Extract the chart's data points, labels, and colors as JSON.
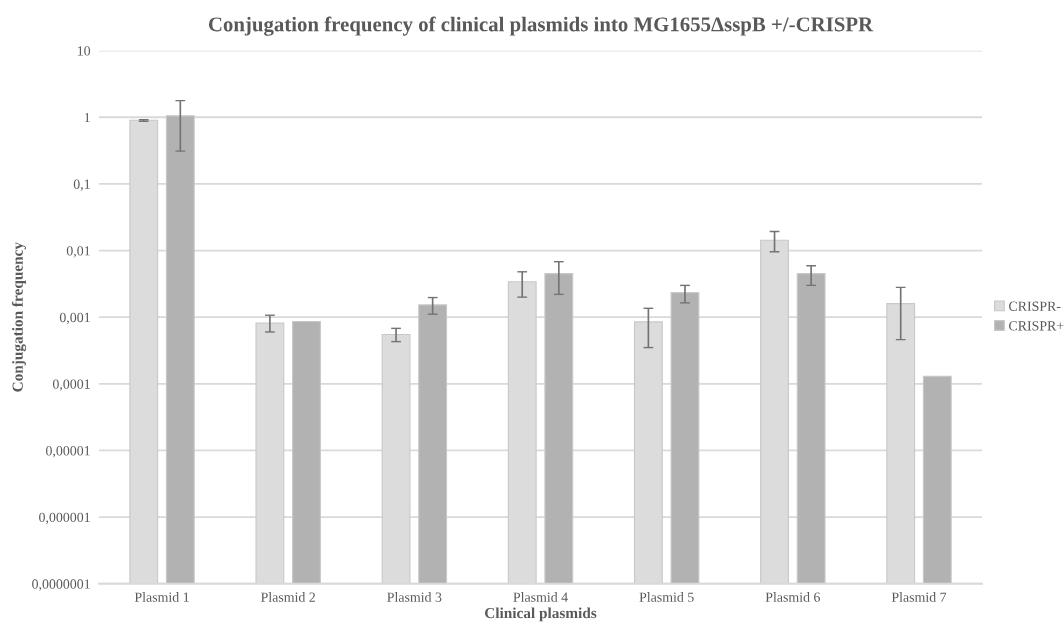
{
  "chart_data": {
    "type": "bar",
    "title": "Conjugation frequency of clinical plasmids into MG1655ΔsspB +/-CRISPR",
    "xlabel": "Clinical plasmids",
    "ylabel": "Conjugation frequency",
    "categories": [
      "Plasmid 1",
      "Plasmid 2",
      "Plasmid 3",
      "Plasmid 4",
      "Plasmid 5",
      "Plasmid 6",
      "Plasmid 7"
    ],
    "series": [
      {
        "name": "CRISPR-",
        "color": "#dcdcdc",
        "values": [
          0.9,
          0.00082,
          0.00055,
          0.0034,
          0.00085,
          0.0143,
          0.0016
        ],
        "errors": [
          [
            0.87,
            0.92
          ],
          [
            0.0006,
            0.00107
          ],
          [
            0.00043,
            0.00068
          ],
          [
            0.002,
            0.0048
          ],
          [
            0.00035,
            0.00136
          ],
          [
            0.0096,
            0.0193
          ],
          [
            0.00046,
            0.0028
          ]
        ]
      },
      {
        "name": "CRISPR+",
        "color": "#b2b2b2",
        "values": [
          1.05,
          0.00086,
          0.00153,
          0.0045,
          0.00234,
          0.0045,
          0.00013
        ],
        "errors": [
          [
            0.31,
            1.78
          ],
          null,
          [
            0.00111,
            0.00197
          ],
          [
            0.0022,
            0.0068
          ],
          [
            0.00164,
            0.003
          ],
          [
            0.003,
            0.0059
          ],
          null
        ]
      }
    ],
    "log": "y",
    "ylim": [
      1e-07,
      10
    ],
    "yticks": [
      {
        "value": 1e-07,
        "label": "0,0000001"
      },
      {
        "value": 1e-06,
        "label": "0,000001"
      },
      {
        "value": 1e-05,
        "label": "0,00001"
      },
      {
        "value": 0.0001,
        "label": "0,0001"
      },
      {
        "value": 0.001,
        "label": "0,001"
      },
      {
        "value": 0.01,
        "label": "0,01"
      },
      {
        "value": 0.1,
        "label": "0,1"
      },
      1,
      10
    ],
    "grid": "y",
    "legend": "right"
  }
}
